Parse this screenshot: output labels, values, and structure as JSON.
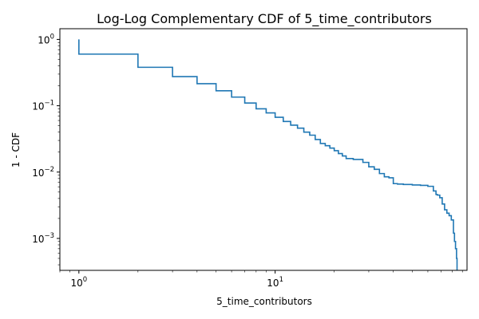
{
  "chart_data": {
    "type": "line",
    "title": "Log-Log Complementary CDF of 5_time_contributors",
    "xlabel": "5_time_contributors",
    "ylabel": "1 - CDF",
    "xscale": "log",
    "yscale": "log",
    "xlim": [
      0.8,
      95
    ],
    "ylim": [
      0.00033,
      1.45
    ],
    "grid": false,
    "color": "#1f77b4",
    "xticks": [
      {
        "base": "10",
        "exp": "0",
        "value": 1
      },
      {
        "base": "10",
        "exp": "1",
        "value": 10
      }
    ],
    "yticks": [
      {
        "base": "10",
        "exp": "0",
        "value": 1
      },
      {
        "base": "10",
        "exp": "−1",
        "value": 0.1
      },
      {
        "base": "10",
        "exp": "−2",
        "value": 0.01
      },
      {
        "base": "10",
        "exp": "−3",
        "value": 0.001
      }
    ],
    "series": [
      {
        "step": "post",
        "x": [
          1,
          1,
          2,
          3,
          4,
          5,
          6,
          7,
          8,
          9,
          10,
          11,
          12,
          13,
          14,
          15,
          16,
          17,
          18,
          19,
          20,
          21,
          22,
          23,
          25,
          28,
          30,
          32,
          34,
          36,
          38,
          40,
          42,
          45,
          50,
          55,
          60,
          64,
          66,
          67,
          69,
          71,
          73,
          75,
          77,
          79,
          81,
          82,
          83,
          84,
          84.5
        ],
        "y": [
          1,
          0.6,
          0.38,
          0.275,
          0.215,
          0.168,
          0.135,
          0.11,
          0.09,
          0.078,
          0.067,
          0.058,
          0.051,
          0.046,
          0.04,
          0.036,
          0.031,
          0.027,
          0.025,
          0.023,
          0.021,
          0.019,
          0.0175,
          0.016,
          0.0155,
          0.014,
          0.012,
          0.011,
          0.0095,
          0.0085,
          0.0082,
          0.0067,
          0.0066,
          0.0065,
          0.0064,
          0.0063,
          0.0061,
          0.0052,
          0.0046,
          0.0045,
          0.0041,
          0.0033,
          0.0027,
          0.0024,
          0.0022,
          0.0019,
          0.0012,
          0.0009,
          0.0007,
          0.0005,
          0.00033
        ]
      }
    ]
  }
}
